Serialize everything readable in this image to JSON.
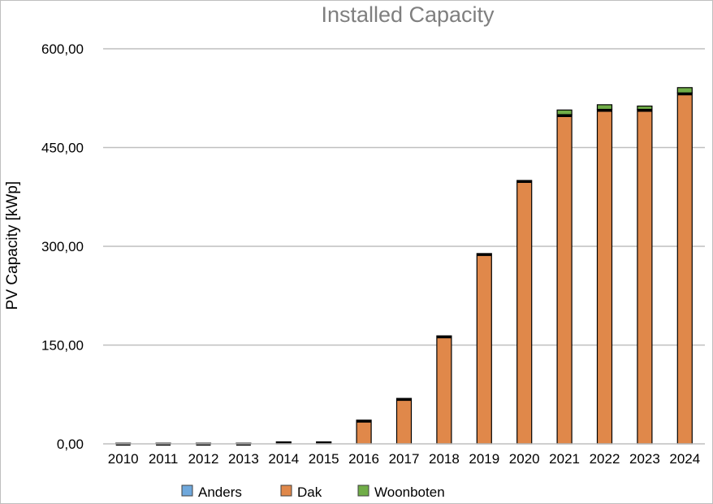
{
  "chart_data": {
    "type": "bar",
    "stacked": true,
    "title": "Installed Capacity",
    "xlabel": "",
    "ylabel": "PV Capacity [kWp]",
    "ylim": [
      0,
      600
    ],
    "yticks": [
      0,
      150,
      300,
      450,
      600
    ],
    "ytick_labels": [
      "0,00",
      "150,00",
      "300,00",
      "450,00",
      "600,00"
    ],
    "grid": true,
    "legend_position": "bottom",
    "categories": [
      "2010",
      "2011",
      "2012",
      "2013",
      "2014",
      "2015",
      "2016",
      "2017",
      "2018",
      "2019",
      "2020",
      "2021",
      "2022",
      "2023",
      "2024"
    ],
    "series": [
      {
        "name": "Anders",
        "color": "#6fa8dc",
        "values": [
          0,
          0,
          0,
          0,
          0,
          0,
          0,
          0,
          0,
          0,
          0,
          0,
          0,
          0,
          0
        ]
      },
      {
        "name": "Dak",
        "color": "#e0884a",
        "values": [
          1,
          1,
          1,
          1,
          3,
          3,
          36,
          69,
          164,
          289,
          400,
          500,
          508,
          508,
          533
        ]
      },
      {
        "name": "Woonboten",
        "color": "#70ad47",
        "values": [
          0,
          0,
          0,
          0,
          0,
          0,
          0,
          0,
          0,
          0,
          0,
          7,
          7,
          5,
          8
        ]
      }
    ]
  }
}
